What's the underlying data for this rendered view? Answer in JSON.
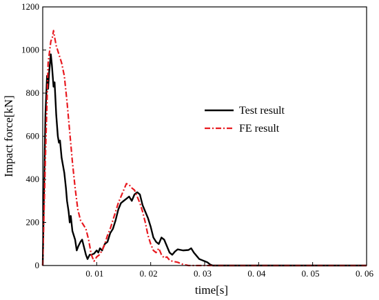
{
  "chart_data": {
    "type": "line",
    "xlabel": "time[s]",
    "ylabel": "Impact force[kN]",
    "xlim": [
      0,
      0.06
    ],
    "ylim": [
      0,
      1200
    ],
    "x_ticks": [
      0.01,
      0.02,
      0.03,
      0.04,
      0.05,
      0.06
    ],
    "x_tick_labels": [
      "0. 01",
      "0. 02",
      "0. 03",
      "0. 04",
      "0. 05",
      "0. 06"
    ],
    "y_ticks": [
      0,
      200,
      400,
      600,
      800,
      1000,
      1200
    ],
    "y_tick_labels": [
      "0",
      "200",
      "400",
      "600",
      "800",
      "1000",
      "1200"
    ],
    "grid": false,
    "legend_position": "center-right",
    "series": [
      {
        "name": "Test result",
        "color": "#000000",
        "style": "solid",
        "points": [
          [
            0,
            0
          ],
          [
            0.0002,
            300
          ],
          [
            0.0005,
            700
          ],
          [
            0.0008,
            880
          ],
          [
            0.001,
            820
          ],
          [
            0.0012,
            900
          ],
          [
            0.0015,
            980
          ],
          [
            0.0017,
            930
          ],
          [
            0.002,
            830
          ],
          [
            0.0022,
            850
          ],
          [
            0.0025,
            700
          ],
          [
            0.0028,
            600
          ],
          [
            0.003,
            570
          ],
          [
            0.0032,
            580
          ],
          [
            0.0035,
            500
          ],
          [
            0.004,
            430
          ],
          [
            0.0043,
            360
          ],
          [
            0.0045,
            300
          ],
          [
            0.0048,
            250
          ],
          [
            0.005,
            200
          ],
          [
            0.0052,
            230
          ],
          [
            0.0055,
            160
          ],
          [
            0.006,
            120
          ],
          [
            0.0063,
            70
          ],
          [
            0.0066,
            90
          ],
          [
            0.007,
            110
          ],
          [
            0.0073,
            120
          ],
          [
            0.0077,
            80
          ],
          [
            0.008,
            50
          ],
          [
            0.0083,
            30
          ],
          [
            0.0087,
            50
          ],
          [
            0.009,
            50
          ],
          [
            0.0095,
            55
          ],
          [
            0.01,
            70
          ],
          [
            0.0103,
            60
          ],
          [
            0.0106,
            80
          ],
          [
            0.011,
            70
          ],
          [
            0.0115,
            100
          ],
          [
            0.012,
            110
          ],
          [
            0.0125,
            150
          ],
          [
            0.013,
            170
          ],
          [
            0.0135,
            210
          ],
          [
            0.014,
            260
          ],
          [
            0.0145,
            290
          ],
          [
            0.015,
            300
          ],
          [
            0.0155,
            310
          ],
          [
            0.016,
            320
          ],
          [
            0.0165,
            300
          ],
          [
            0.017,
            330
          ],
          [
            0.0175,
            340
          ],
          [
            0.018,
            330
          ],
          [
            0.0185,
            280
          ],
          [
            0.019,
            250
          ],
          [
            0.0195,
            220
          ],
          [
            0.02,
            180
          ],
          [
            0.0205,
            130
          ],
          [
            0.021,
            110
          ],
          [
            0.0215,
            100
          ],
          [
            0.022,
            130
          ],
          [
            0.0225,
            120
          ],
          [
            0.023,
            90
          ],
          [
            0.0235,
            60
          ],
          [
            0.024,
            50
          ],
          [
            0.0245,
            65
          ],
          [
            0.025,
            75
          ],
          [
            0.026,
            70
          ],
          [
            0.027,
            72
          ],
          [
            0.0275,
            80
          ],
          [
            0.028,
            60
          ],
          [
            0.0285,
            45
          ],
          [
            0.029,
            30
          ],
          [
            0.0295,
            25
          ],
          [
            0.03,
            20
          ],
          [
            0.0305,
            15
          ],
          [
            0.031,
            5
          ],
          [
            0.0315,
            0
          ],
          [
            0.06,
            0
          ]
        ]
      },
      {
        "name": "FE result",
        "color": "#e8191f",
        "style": "dashdot",
        "points": [
          [
            0,
            0
          ],
          [
            0.0005,
            500
          ],
          [
            0.001,
            940
          ],
          [
            0.0013,
            1000
          ],
          [
            0.0015,
            1040
          ],
          [
            0.0018,
            1060
          ],
          [
            0.002,
            1090
          ],
          [
            0.0022,
            1060
          ],
          [
            0.0025,
            1020
          ],
          [
            0.003,
            980
          ],
          [
            0.0035,
            940
          ],
          [
            0.004,
            880
          ],
          [
            0.0045,
            760
          ],
          [
            0.005,
            620
          ],
          [
            0.0055,
            480
          ],
          [
            0.006,
            360
          ],
          [
            0.0065,
            260
          ],
          [
            0.007,
            210
          ],
          [
            0.0075,
            190
          ],
          [
            0.008,
            170
          ],
          [
            0.0085,
            120
          ],
          [
            0.009,
            50
          ],
          [
            0.0095,
            20
          ],
          [
            0.01,
            40
          ],
          [
            0.0105,
            50
          ],
          [
            0.011,
            70
          ],
          [
            0.0115,
            100
          ],
          [
            0.012,
            140
          ],
          [
            0.0125,
            170
          ],
          [
            0.013,
            210
          ],
          [
            0.0135,
            250
          ],
          [
            0.014,
            290
          ],
          [
            0.0145,
            320
          ],
          [
            0.015,
            350
          ],
          [
            0.0155,
            380
          ],
          [
            0.016,
            375
          ],
          [
            0.0165,
            360
          ],
          [
            0.017,
            350
          ],
          [
            0.0175,
            320
          ],
          [
            0.018,
            290
          ],
          [
            0.0185,
            250
          ],
          [
            0.019,
            200
          ],
          [
            0.0195,
            140
          ],
          [
            0.02,
            100
          ],
          [
            0.0205,
            70
          ],
          [
            0.021,
            60
          ],
          [
            0.0215,
            80
          ],
          [
            0.022,
            50
          ],
          [
            0.0225,
            35
          ],
          [
            0.023,
            40
          ],
          [
            0.0235,
            25
          ],
          [
            0.024,
            20
          ],
          [
            0.025,
            15
          ],
          [
            0.026,
            5
          ],
          [
            0.027,
            0
          ],
          [
            0.06,
            0
          ]
        ]
      }
    ]
  }
}
